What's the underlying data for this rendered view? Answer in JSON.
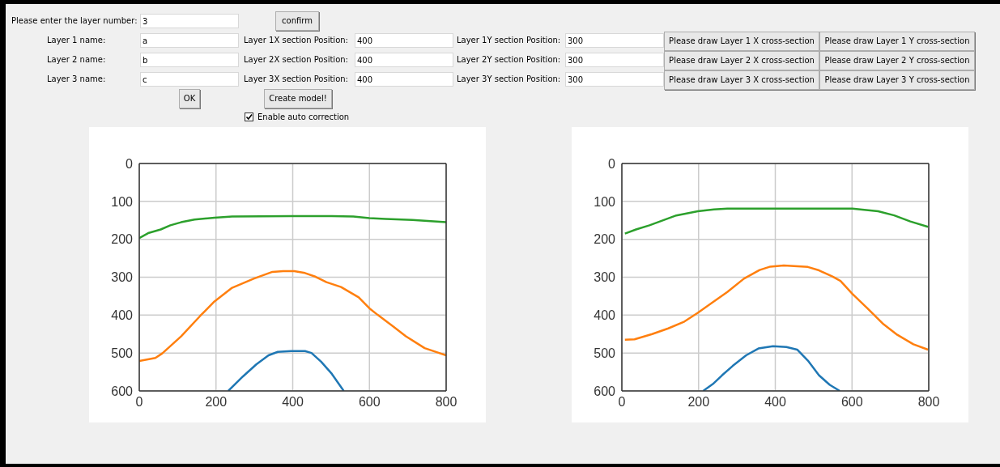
{
  "chart_data": [
    {
      "type": "other",
      "annotations": [
        "Please enter the layer number:",
        "3",
        "confirm",
        "Layer 1 name:",
        "a",
        "Layer 1X section Position:",
        "400",
        "Layer 1Y section Position:",
        "300",
        "Please draw Layer 1 X cross-section",
        "Please draw Layer 1 Y cross-section",
        "Layer 2 name:",
        "b",
        "Layer 2X section Position:",
        "400",
        "Layer 2Y section Position:",
        "300",
        "Please draw Layer 2 X cross-section",
        "Please draw Layer 2 Y cross-section",
        "Layer 3 name:",
        "c",
        "Layer 3X section Position:",
        "400",
        "Layer 3Y section Position:",
        "300",
        "Please draw Layer 3 X cross-section",
        "Please draw Layer 3 Y cross-section",
        "OK",
        "Create model!",
        "Enable auto correction"
      ]
    },
    {
      "type": "line",
      "xlim": [
        0,
        800
      ],
      "xticks": [
        0,
        200,
        400,
        600,
        800
      ],
      "ylim": [
        600,
        0
      ],
      "yticks": [
        0,
        100,
        200,
        300,
        400,
        500,
        600
      ],
      "grid": true,
      "series": [
        {
          "color": "#2ca02c",
          "x": [
            0,
            25,
            56,
            81,
            109,
            144,
            196,
            242,
            396,
            502,
            558,
            600,
            642,
            712,
            800
          ],
          "values": [
            197,
            183,
            174,
            163,
            155,
            148,
            143,
            140,
            139,
            139,
            140,
            144,
            146,
            149,
            155
          ]
        },
        {
          "color": "#ff7f0e",
          "x": [
            0,
            42,
            60,
            109,
            158,
            196,
            242,
            298,
            347,
            375,
            404,
            432,
            460,
            488,
            526,
            572,
            600,
            621,
            663,
            695,
            744,
            800
          ],
          "values": [
            521,
            513,
            501,
            456,
            403,
            364,
            328,
            304,
            286,
            284,
            284,
            289,
            299,
            313,
            326,
            353,
            382,
            399,
            431,
            456,
            487,
            506
          ]
        },
        {
          "color": "#1f77b4",
          "x": [
            232,
            270,
            305,
            337,
            361,
            396,
            432,
            449,
            474,
            502,
            533
          ],
          "values": [
            600,
            562,
            530,
            506,
            497,
            495,
            495,
            500,
            523,
            555,
            600
          ]
        }
      ]
    },
    {
      "type": "line",
      "xlim": [
        0,
        800
      ],
      "xticks": [
        0,
        200,
        400,
        600,
        800
      ],
      "ylim": [
        600,
        0
      ],
      "yticks": [
        0,
        100,
        200,
        300,
        400,
        500,
        600
      ],
      "grid": true,
      "series": [
        {
          "color": "#2ca02c",
          "x": [
            8,
            37,
            72,
            142,
            198,
            240,
            275,
            601,
            668,
            710,
            752,
            798
          ],
          "values": [
            185,
            174,
            163,
            137,
            126,
            121,
            119,
            119,
            126,
            137,
            153,
            167
          ]
        },
        {
          "color": "#ff7f0e",
          "x": [
            8,
            33,
            79,
            121,
            163,
            198,
            233,
            275,
            318,
            359,
            387,
            422,
            485,
            514,
            549,
            570,
            601,
            640,
            682,
            718,
            760,
            798
          ],
          "values": [
            465,
            464,
            450,
            435,
            417,
            394,
            369,
            339,
            304,
            281,
            272,
            269,
            273,
            282,
            298,
            310,
            344,
            382,
            424,
            452,
            477,
            491
          ]
        },
        {
          "color": "#1f77b4",
          "x": [
            212,
            237,
            261,
            289,
            324,
            356,
            394,
            429,
            457,
            485,
            514,
            542,
            568
          ],
          "values": [
            600,
            582,
            559,
            534,
            506,
            488,
            482,
            484,
            491,
            520,
            559,
            584,
            600
          ]
        }
      ]
    }
  ]
}
